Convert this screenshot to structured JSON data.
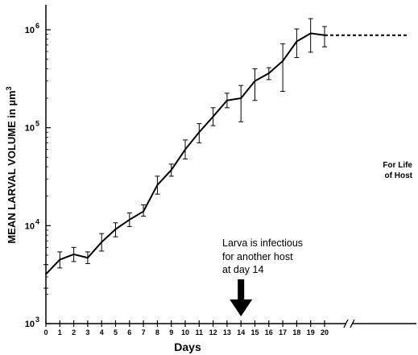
{
  "chart_data": {
    "type": "line",
    "title": "",
    "xlabel": "Days",
    "ylabel": "MEAN LARVAL VOLUME  in µm",
    "ylabel_superscript": "3",
    "yscale": "log",
    "ylim": [
      1000,
      1500000
    ],
    "xlim": [
      0,
      27
    ],
    "x_ticks": [
      0,
      1,
      2,
      3,
      4,
      5,
      6,
      7,
      8,
      9,
      10,
      11,
      12,
      13,
      14,
      15,
      16,
      17,
      18,
      19,
      20
    ],
    "y_ticks": [
      {
        "value": 1000,
        "base": "10",
        "exp": "3"
      },
      {
        "value": 10000,
        "base": "10",
        "exp": "4"
      },
      {
        "value": 100000,
        "base": "10",
        "exp": "5"
      },
      {
        "value": 1000000,
        "base": "10",
        "exp": "6"
      }
    ],
    "x_axis_break": true,
    "series": [
      {
        "x": [
          0,
          1,
          2,
          3,
          4,
          5,
          6,
          7,
          8,
          9,
          10,
          11,
          12,
          13,
          14,
          15,
          16,
          17,
          18,
          19,
          20
        ],
        "values": [
          3200,
          4500,
          5100,
          4700,
          6800,
          9200,
          11500,
          14000,
          26000,
          37000,
          60000,
          90000,
          130000,
          190000,
          200000,
          300000,
          360000,
          480000,
          760000,
          920000,
          880000
        ],
        "err_low": [
          2300,
          3700,
          4300,
          4100,
          5500,
          7700,
          9800,
          12500,
          21000,
          32000,
          48000,
          70000,
          105000,
          160000,
          115000,
          190000,
          310000,
          235000,
          520000,
          590000,
          670000
        ],
        "err_high": [
          4000,
          5400,
          6000,
          5400,
          8300,
          10700,
          13500,
          16300,
          32000,
          42500,
          75000,
          110000,
          160000,
          225000,
          270000,
          400000,
          410000,
          720000,
          1020000,
          1300000,
          1080000
        ]
      }
    ],
    "extension": {
      "from_x": 20,
      "to_x": 27,
      "value": 880000,
      "style": "dashed"
    },
    "annotations": [
      {
        "lines": [
          "Larva is infectious",
          "for another host",
          "at day 14"
        ],
        "arrow_x": 14
      },
      {
        "lines": [
          "For Life",
          "of Host"
        ]
      }
    ]
  },
  "colors": {
    "line": "#000000",
    "background": "#ffffff"
  }
}
